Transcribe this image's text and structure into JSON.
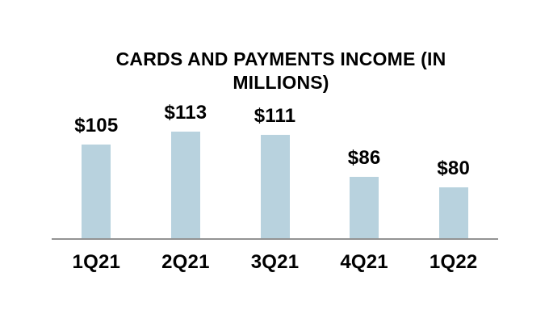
{
  "chart_data": {
    "type": "bar",
    "title": "CARDS AND PAYMENTS INCOME (IN MILLIONS)",
    "title_lines": [
      "CARDS AND PAYMENTS INCOME (IN",
      "MILLIONS)"
    ],
    "categories": [
      "1Q21",
      "2Q21",
      "3Q21",
      "4Q21",
      "1Q22"
    ],
    "values": [
      105,
      113,
      111,
      86,
      80
    ],
    "value_labels": [
      "$105",
      "$113",
      "$111",
      "$86",
      "$80"
    ],
    "xlabel": "",
    "ylabel": "",
    "ylim": [
      50,
      150
    ],
    "grid": false,
    "legend_position": "none",
    "colors": {
      "bar_fill": "#B8D2DE",
      "axis_line": "#939393",
      "text": "#000000",
      "background": "#FFFFFF"
    }
  }
}
